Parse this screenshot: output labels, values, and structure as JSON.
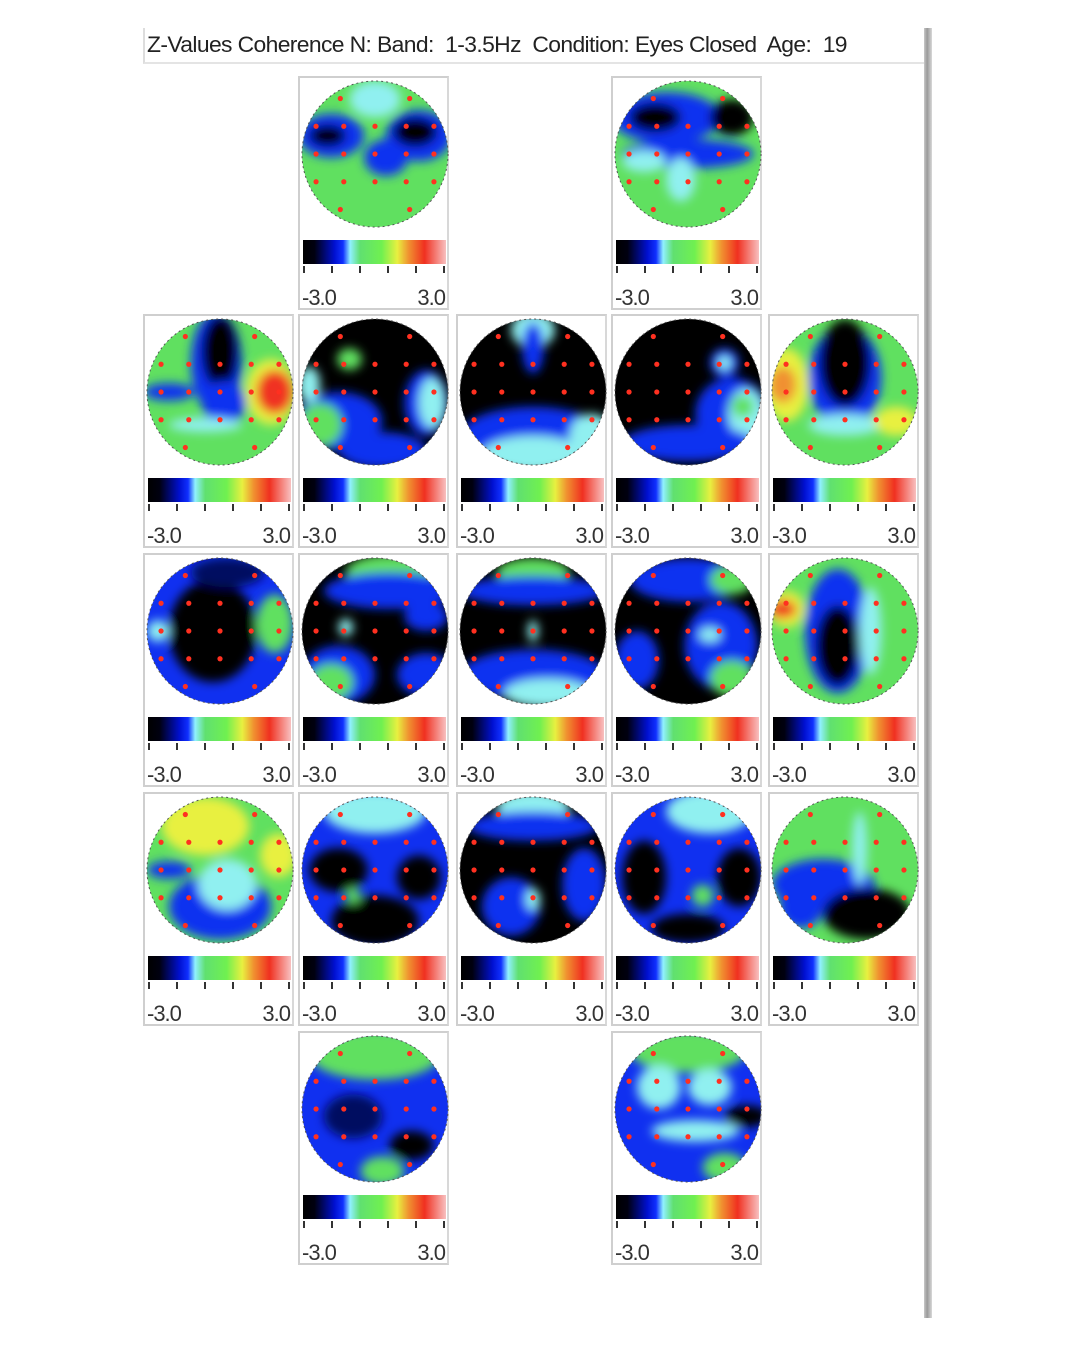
{
  "header": {
    "title": "Z-Values Coherence N: Band:  1-3.5Hz  Condition: Eyes Closed  Age:  19"
  },
  "scale": {
    "min_label": "-3.0",
    "max_label": "3.0",
    "min": -3.0,
    "max": 3.0
  },
  "colors": {
    "black": "#000000",
    "blue": "#1030f0",
    "cyan": "#90f0f0",
    "green": "#60e060",
    "yellow": "#e8f040",
    "red": "#f03020",
    "electrode": "#ff3020"
  },
  "maps": [
    {
      "id": "map-1"
    },
    {
      "id": "map-2"
    },
    {
      "id": "map-3"
    },
    {
      "id": "map-4"
    },
    {
      "id": "map-5"
    },
    {
      "id": "map-6"
    },
    {
      "id": "map-7"
    },
    {
      "id": "map-8"
    },
    {
      "id": "map-9"
    },
    {
      "id": "map-10"
    },
    {
      "id": "map-11"
    },
    {
      "id": "map-12"
    },
    {
      "id": "map-13"
    },
    {
      "id": "map-14"
    },
    {
      "id": "map-15"
    },
    {
      "id": "map-16"
    },
    {
      "id": "map-17"
    },
    {
      "id": "map-18"
    },
    {
      "id": "map-19"
    }
  ]
}
